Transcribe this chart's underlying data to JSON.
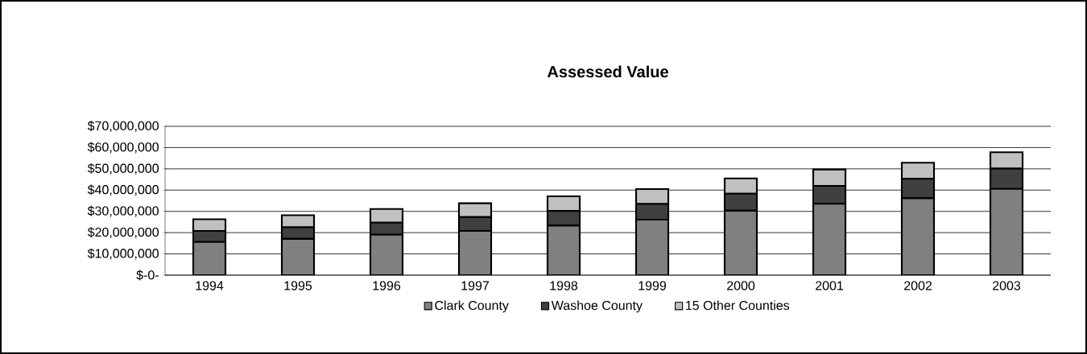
{
  "chart_data": {
    "type": "bar",
    "stacked": true,
    "title": "Assessed Value",
    "categories": [
      "1994",
      "1995",
      "1996",
      "1997",
      "1998",
      "1999",
      "2000",
      "2001",
      "2002",
      "2003"
    ],
    "series": [
      {
        "name": "Clark County",
        "color": "#808080",
        "values": [
          15600000,
          17100000,
          19000000,
          20800000,
          23300000,
          26100000,
          30300000,
          33600000,
          36200000,
          40600000
        ]
      },
      {
        "name": "Washoe County",
        "color": "#404040",
        "values": [
          5200000,
          5400000,
          5700000,
          6500000,
          6900000,
          7400000,
          8000000,
          8400000,
          9100000,
          9500000
        ]
      },
      {
        "name": "15 Other Counties",
        "color": "#c0c0c0",
        "values": [
          5500000,
          5700000,
          6400000,
          6500000,
          6900000,
          7000000,
          7200000,
          7700000,
          7600000,
          7700000
        ]
      }
    ],
    "ylim": [
      0,
      70000000
    ],
    "yticks": [
      {
        "value": 0,
        "label": "$-0-"
      },
      {
        "value": 10000000,
        "label": "$10,000,000"
      },
      {
        "value": 20000000,
        "label": "$20,000,000"
      },
      {
        "value": 30000000,
        "label": "$30,000,000"
      },
      {
        "value": 40000000,
        "label": "$40,000,000"
      },
      {
        "value": 50000000,
        "label": "$50,000,000"
      },
      {
        "value": 60000000,
        "label": "$60,000,000"
      },
      {
        "value": 70000000,
        "label": "$70,000,000"
      }
    ],
    "grid": "y",
    "legend": "bottom"
  }
}
